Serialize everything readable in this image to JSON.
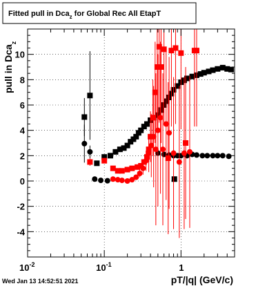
{
  "title_prefix": "Fitted pull in Dca",
  "title_sub": "z",
  "title_suffix": " for Global Rec All EtapT",
  "ylabel_main": "pull in Dca",
  "ylabel_sub": "z",
  "xlabel": "pT/|q| (GeV/c)",
  "timestamp": "Wed Jan 13 14:52:51 2021",
  "colors": {
    "series_black": "#000000",
    "series_red": "#ff0000"
  },
  "chart_data": {
    "type": "scatter",
    "title": "Fitted pull in Dca_z for Global Rec All EtapT",
    "xlabel": "pT/|q| (GeV/c)",
    "ylabel": "pull in Dca_z",
    "xscale": "log",
    "xlim": [
      0.01,
      5.0
    ],
    "ylim": [
      -6,
      12
    ],
    "grid": true,
    "x_tick_labels": [
      {
        "value": 0.01,
        "base": "10",
        "exp": "-2"
      },
      {
        "value": 0.1,
        "base": "10",
        "exp": "-1"
      },
      {
        "value": 1,
        "base": "1",
        "exp": ""
      }
    ],
    "y_tick_labels": [
      "-4",
      "-2",
      "0",
      "2",
      "4",
      "6",
      "8",
      "10"
    ],
    "y_tick_values": [
      -4,
      -2,
      0,
      2,
      4,
      6,
      8,
      10
    ],
    "series": [
      {
        "color": "black",
        "marker": "square",
        "points": [
          {
            "x": 0.055,
            "y": 5.05,
            "err": 1.5
          },
          {
            "x": 0.065,
            "y": 6.75,
            "err": 3.5
          },
          {
            "x": 0.08,
            "y": 1.4,
            "err": 0.2
          },
          {
            "x": 0.1,
            "y": 1.9,
            "err": 0.15
          },
          {
            "x": 0.12,
            "y": 2.0,
            "err": 0.1
          },
          {
            "x": 0.14,
            "y": 2.3,
            "err": 0.1
          },
          {
            "x": 0.16,
            "y": 2.5,
            "err": 0.1
          },
          {
            "x": 0.18,
            "y": 2.6,
            "err": 0.1
          },
          {
            "x": 0.2,
            "y": 2.8,
            "err": 0.1
          },
          {
            "x": 0.22,
            "y": 3.1,
            "err": 0.1
          },
          {
            "x": 0.24,
            "y": 3.3,
            "err": 0.1
          },
          {
            "x": 0.26,
            "y": 3.5,
            "err": 0.1
          },
          {
            "x": 0.28,
            "y": 3.8,
            "err": 0.1
          },
          {
            "x": 0.3,
            "y": 4.0,
            "err": 0.1
          },
          {
            "x": 0.33,
            "y": 4.3,
            "err": 0.1
          },
          {
            "x": 0.36,
            "y": 4.5,
            "err": 0.1
          },
          {
            "x": 0.4,
            "y": 4.8,
            "err": 0.1
          },
          {
            "x": 0.44,
            "y": 5.0,
            "err": 0.1
          },
          {
            "x": 0.5,
            "y": 5.2,
            "err": 0.1
          },
          {
            "x": 0.55,
            "y": 5.6,
            "err": 0.1
          },
          {
            "x": 0.6,
            "y": 6.0,
            "err": 0.1
          },
          {
            "x": 0.65,
            "y": 6.3,
            "err": 0.1
          },
          {
            "x": 0.7,
            "y": 6.6,
            "err": 0.1
          },
          {
            "x": 0.75,
            "y": 6.9,
            "err": 0.1
          },
          {
            "x": 0.8,
            "y": 7.2,
            "err": 0.1
          },
          {
            "x": 0.9,
            "y": 7.5,
            "err": 0.1
          },
          {
            "x": 1.0,
            "y": 7.8,
            "err": 0.1
          },
          {
            "x": 1.1,
            "y": 7.95,
            "err": 0.1
          },
          {
            "x": 1.2,
            "y": 8.1,
            "err": 0.1
          },
          {
            "x": 1.4,
            "y": 8.25,
            "err": 0.1
          },
          {
            "x": 1.6,
            "y": 8.35,
            "err": 0.1
          },
          {
            "x": 1.8,
            "y": 8.45,
            "err": 0.1
          },
          {
            "x": 2.0,
            "y": 8.55,
            "err": 0.1
          },
          {
            "x": 2.3,
            "y": 8.65,
            "err": 0.1
          },
          {
            "x": 2.6,
            "y": 8.75,
            "err": 0.1
          },
          {
            "x": 3.0,
            "y": 8.85,
            "err": 0.1
          },
          {
            "x": 3.5,
            "y": 8.95,
            "err": 0.1
          },
          {
            "x": 4.0,
            "y": 8.85,
            "err": 0.1
          },
          {
            "x": 4.5,
            "y": 8.8,
            "err": 0.1
          },
          {
            "x": 0.82,
            "y": 0.15,
            "err": 0.1
          }
        ]
      },
      {
        "color": "black",
        "marker": "circle",
        "points": [
          {
            "x": 0.055,
            "y": 2.95,
            "err": 1.5
          },
          {
            "x": 0.065,
            "y": 2.3,
            "err": 0.5
          },
          {
            "x": 0.075,
            "y": 0.15,
            "err": 0.1
          },
          {
            "x": 0.09,
            "y": 0.05,
            "err": 0.1
          },
          {
            "x": 0.11,
            "y": 0.02,
            "err": 0.1
          },
          {
            "x": 0.5,
            "y": 2.2,
            "err": 0.1
          },
          {
            "x": 0.6,
            "y": 2.1,
            "err": 0.1
          },
          {
            "x": 0.7,
            "y": 2.05,
            "err": 0.1
          },
          {
            "x": 0.8,
            "y": 2.0,
            "err": 0.1
          },
          {
            "x": 0.9,
            "y": 2.0,
            "err": 0.1
          },
          {
            "x": 1.0,
            "y": 2.0,
            "err": 0.1
          },
          {
            "x": 1.2,
            "y": 2.0,
            "err": 0.1
          },
          {
            "x": 1.4,
            "y": 2.1,
            "err": 0.1
          },
          {
            "x": 1.6,
            "y": 2.05,
            "err": 0.1
          },
          {
            "x": 1.9,
            "y": 2.0,
            "err": 0.1
          },
          {
            "x": 2.2,
            "y": 2.0,
            "err": 0.1
          },
          {
            "x": 2.6,
            "y": 2.0,
            "err": 0.1
          },
          {
            "x": 3.0,
            "y": 2.0,
            "err": 0.1
          },
          {
            "x": 3.5,
            "y": 2.0,
            "err": 0.1
          },
          {
            "x": 4.2,
            "y": 1.95,
            "err": 0.1
          }
        ]
      },
      {
        "color": "red",
        "marker": "square",
        "points": [
          {
            "x": 0.065,
            "y": 1.5,
            "err": 0.3
          },
          {
            "x": 0.1,
            "y": 1.6,
            "err": 0.2
          },
          {
            "x": 0.13,
            "y": 1.0,
            "err": 0.1
          },
          {
            "x": 0.15,
            "y": 0.8,
            "err": 0.1
          },
          {
            "x": 0.17,
            "y": 0.8,
            "err": 0.1
          },
          {
            "x": 0.2,
            "y": 0.9,
            "err": 0.1
          },
          {
            "x": 0.23,
            "y": 1.0,
            "err": 0.1
          },
          {
            "x": 0.27,
            "y": 1.1,
            "err": 0.1
          },
          {
            "x": 0.3,
            "y": 1.2,
            "err": 0.1
          },
          {
            "x": 0.33,
            "y": 1.5,
            "err": 0.2
          },
          {
            "x": 0.36,
            "y": 1.9,
            "err": 0.3
          },
          {
            "x": 0.38,
            "y": 2.5,
            "err": 1.0
          },
          {
            "x": 0.4,
            "y": 3.5,
            "err": 2.0
          },
          {
            "x": 0.43,
            "y": 5.0,
            "err": 3.0
          },
          {
            "x": 0.46,
            "y": 7.0,
            "err": 4.0
          },
          {
            "x": 0.49,
            "y": 9.0,
            "err": 5.0
          },
          {
            "x": 0.52,
            "y": 10.6,
            "err": 6.0
          },
          {
            "x": 0.55,
            "y": 9.0,
            "err": 6.0
          },
          {
            "x": 0.6,
            "y": 10.4,
            "err": 6.0
          },
          {
            "x": 0.68,
            "y": 1.8,
            "err": 6.0
          },
          {
            "x": 0.75,
            "y": 10.3,
            "err": 6.0
          },
          {
            "x": 0.85,
            "y": 10.5,
            "err": 6.0
          },
          {
            "x": 1.0,
            "y": 10.1,
            "err": 6.0
          },
          {
            "x": 1.15,
            "y": 3.0,
            "err": 6.0
          },
          {
            "x": 1.5,
            "y": 10.3,
            "err": 6.0
          },
          {
            "x": 1.6,
            "y": 10.3,
            "err": 6.0
          }
        ]
      },
      {
        "color": "red",
        "marker": "circle",
        "points": [
          {
            "x": 0.13,
            "y": 0.15,
            "err": 0.1
          },
          {
            "x": 0.15,
            "y": 0.1,
            "err": 0.1
          },
          {
            "x": 0.17,
            "y": 0.05,
            "err": 0.1
          },
          {
            "x": 0.2,
            "y": 0.0,
            "err": 0.1
          },
          {
            "x": 0.23,
            "y": 0.1,
            "err": 0.1
          },
          {
            "x": 0.26,
            "y": 0.3,
            "err": 0.2
          },
          {
            "x": 0.29,
            "y": 0.6,
            "err": 0.3
          },
          {
            "x": 0.32,
            "y": 1.0,
            "err": 0.5
          },
          {
            "x": 0.35,
            "y": 1.6,
            "err": 0.8
          },
          {
            "x": 0.38,
            "y": 2.2,
            "err": 1.5
          },
          {
            "x": 0.41,
            "y": 2.8,
            "err": 2.5
          },
          {
            "x": 0.44,
            "y": 3.5,
            "err": 4.0
          },
          {
            "x": 0.47,
            "y": 2.5,
            "err": 6.0
          },
          {
            "x": 0.5,
            "y": 4.0,
            "err": 6.0
          },
          {
            "x": 0.54,
            "y": 5.0,
            "err": 6.0
          },
          {
            "x": 0.58,
            "y": 2.5,
            "err": 6.0
          },
          {
            "x": 0.64,
            "y": 4.5,
            "err": 6.0
          },
          {
            "x": 0.7,
            "y": 3.8,
            "err": 6.0
          },
          {
            "x": 0.8,
            "y": 2.2,
            "err": 6.0
          },
          {
            "x": 0.95,
            "y": 1.5,
            "err": 6.0
          },
          {
            "x": 1.1,
            "y": 2.2,
            "err": 6.0
          },
          {
            "x": 1.3,
            "y": 2.3,
            "err": 6.0
          }
        ]
      }
    ]
  }
}
